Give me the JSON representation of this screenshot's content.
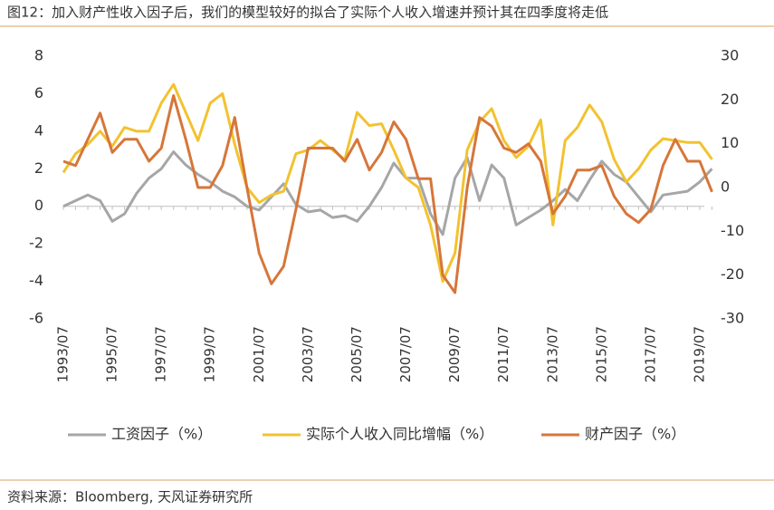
{
  "chart_data": {
    "type": "line",
    "title": "图12：加入财产性收入因子后，我们的模型较好的拟合了实际个人收入增速并预计其在四季度将走低",
    "source": "资料来源：Bloomberg, 天风证券研究所",
    "categories": [
      "1993/07",
      null,
      null,
      null,
      "1995/07",
      null,
      null,
      null,
      "1997/07",
      null,
      null,
      null,
      "1999/07",
      null,
      null,
      null,
      "2001/07",
      null,
      null,
      null,
      "2003/07",
      null,
      null,
      null,
      "2005/07",
      null,
      null,
      null,
      "2007/07",
      null,
      null,
      null,
      "2009/07",
      null,
      null,
      null,
      "2011/07",
      null,
      null,
      null,
      "2013/07",
      null,
      null,
      null,
      "2015/07",
      null,
      null,
      null,
      "2017/07",
      null,
      null,
      null,
      "2019/07",
      null
    ],
    "ylim": [
      -6,
      8
    ],
    "yticks": [
      -6,
      -4,
      -2,
      0,
      2,
      4,
      6,
      8
    ],
    "y2lim": [
      -30,
      30
    ],
    "y2ticks": [
      -30,
      -20,
      -10,
      0,
      10,
      20,
      30
    ],
    "series": [
      {
        "name": "工资因子（%）",
        "color": "#a6a6a6",
        "axis": "y",
        "values": [
          0,
          0.3,
          0.6,
          0.3,
          -0.8,
          -0.4,
          0.7,
          1.5,
          2.0,
          2.9,
          2.2,
          1.7,
          1.3,
          0.8,
          0.5,
          0,
          -0.2,
          0.5,
          1.2,
          0.1,
          -0.3,
          -0.2,
          -0.6,
          -0.5,
          -0.8,
          0,
          1.0,
          2.3,
          1.5,
          1.5,
          -0.4,
          -1.5,
          1.5,
          2.6,
          0.3,
          2.2,
          1.5,
          -1.0,
          -0.6,
          -0.2,
          0.3,
          0.9,
          0.3,
          1.4,
          2.4,
          1.7,
          1.3,
          0.5,
          -0.3,
          0.6,
          0.7,
          0.8,
          1.3,
          2.0
        ]
      },
      {
        "name": "实际个人收入同比增幅（%）",
        "color": "#f2c230",
        "axis": "y",
        "values": [
          1.8,
          2.8,
          3.3,
          4.0,
          3.2,
          4.2,
          4.0,
          4.0,
          5.5,
          6.5,
          5.0,
          3.5,
          5.5,
          6.0,
          3.3,
          1.0,
          0.2,
          0.6,
          0.8,
          2.8,
          3.0,
          3.5,
          3.0,
          2.5,
          5.0,
          4.3,
          4.4,
          3.0,
          1.5,
          1.0,
          -1.0,
          -4.0,
          -2.5,
          3.0,
          4.5,
          5.2,
          3.5,
          2.6,
          3.2,
          4.6,
          -1.0,
          3.5,
          4.2,
          5.4,
          4.5,
          2.5,
          1.3,
          2.0,
          3.0,
          3.6,
          3.5,
          3.4,
          3.4,
          2.5
        ]
      },
      {
        "name": "财产因子（%）",
        "color": "#d6763a",
        "axis": "y2",
        "values": [
          6,
          5,
          11,
          17,
          8,
          11,
          11,
          6,
          9,
          21,
          11,
          0,
          0,
          5,
          16,
          0,
          -15,
          -22,
          -18,
          -5,
          9,
          9,
          9,
          6,
          11,
          4,
          8,
          15,
          11,
          2,
          2,
          -20,
          -24,
          0,
          16,
          14,
          9,
          8,
          10,
          6,
          -6,
          -2,
          4,
          4,
          5,
          -2,
          -6,
          -8,
          -5,
          5,
          11,
          6,
          6,
          -1
        ]
      }
    ]
  }
}
